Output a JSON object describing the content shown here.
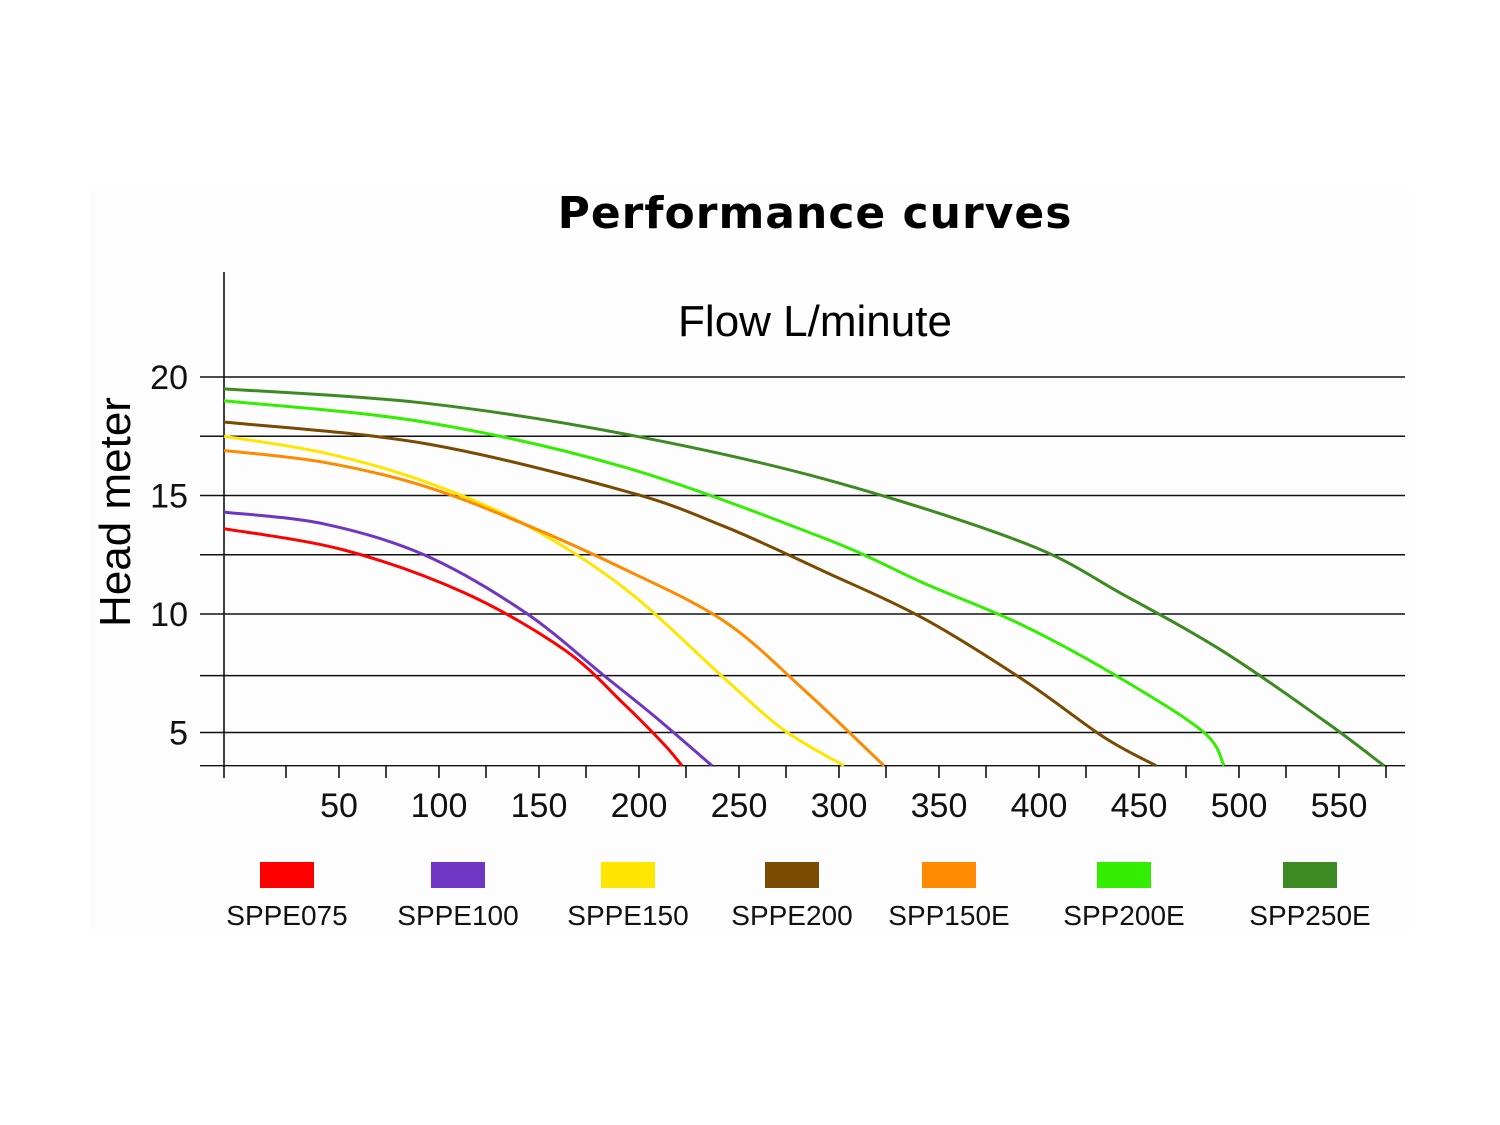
{
  "chart_data": {
    "type": "line",
    "title": "Performance curves",
    "xlabel": "Flow L/minute",
    "ylabel": "Head meter",
    "xlim": [
      0,
      580
    ],
    "ylim": [
      3.6,
      24
    ],
    "grid": true,
    "x_ticks": [
      50,
      100,
      150,
      200,
      250,
      300,
      350,
      400,
      450,
      500,
      550
    ],
    "y_ticks": [
      5,
      10,
      15,
      20
    ],
    "y_gridlines": [
      3.6,
      5,
      7.4,
      10,
      12.5,
      15,
      17.5,
      20
    ],
    "legend_position": "bottom",
    "series": [
      {
        "name": "SPPE075",
        "color": "#ff0000",
        "x": [
          0,
          60,
          120,
          170,
          200,
          220,
          229
        ],
        "y": [
          13.6,
          12.7,
          10.9,
          8.5,
          6.2,
          4.5,
          3.6
        ]
      },
      {
        "name": "SPPE100",
        "color": "#6f35c3",
        "x": [
          0,
          50,
          100,
          150,
          190,
          215,
          244
        ],
        "y": [
          14.3,
          13.8,
          12.5,
          10.1,
          7.4,
          5.7,
          3.6
        ]
      },
      {
        "name": "SPPE150",
        "color": "#ffe600",
        "x": [
          0,
          50,
          100,
          150,
          200,
          250,
          280,
          310
        ],
        "y": [
          17.5,
          16.8,
          15.6,
          13.8,
          11.1,
          7.3,
          5.1,
          3.6
        ]
      },
      {
        "name": "SPPE200",
        "color": "#7a4a00",
        "x": [
          0,
          100,
          200,
          250,
          300,
          350,
          400,
          440,
          466
        ],
        "y": [
          18.1,
          17.2,
          15.2,
          13.7,
          11.8,
          9.8,
          7.2,
          4.8,
          3.6
        ]
      },
      {
        "name": "SPP150E",
        "color": "#ff8a00",
        "x": [
          0,
          50,
          100,
          150,
          200,
          250,
          290,
          330
        ],
        "y": [
          16.9,
          16.4,
          15.4,
          13.8,
          11.9,
          9.7,
          6.8,
          3.6
        ]
      },
      {
        "name": "SPP200E",
        "color": "#33ee00",
        "x": [
          0,
          100,
          200,
          300,
          350,
          400,
          450,
          490,
          500
        ],
        "y": [
          19.0,
          18.1,
          16.2,
          13.2,
          11.3,
          9.5,
          7.2,
          5.0,
          3.6
        ]
      },
      {
        "name": "SPP250E",
        "color": "#3e8a22",
        "x": [
          0,
          100,
          200,
          300,
          400,
          450,
          500,
          550,
          580
        ],
        "y": [
          19.5,
          18.9,
          17.6,
          15.7,
          13.0,
          10.8,
          8.4,
          5.5,
          3.6
        ]
      }
    ]
  }
}
